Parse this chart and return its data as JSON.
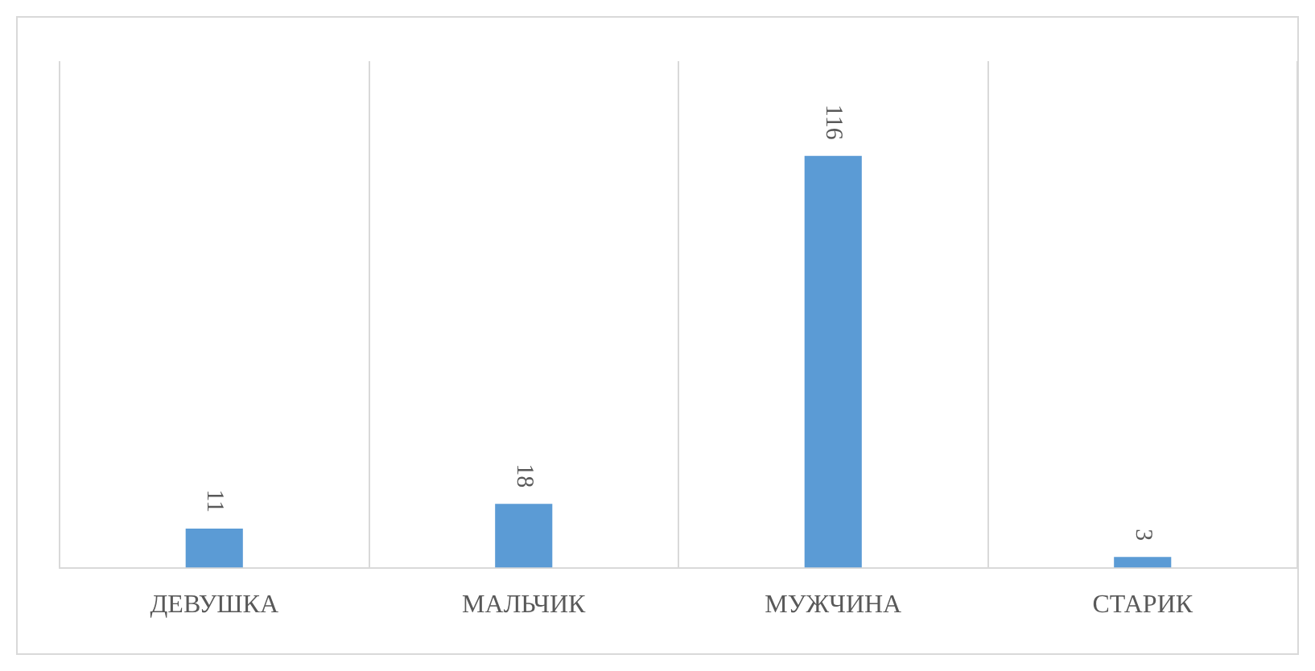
{
  "chart_data": {
    "type": "bar",
    "categories": [
      "ДЕВУШКА",
      "МАЛЬЧИК",
      "МУЖЧИНА",
      "СТАРИК"
    ],
    "values": [
      11,
      18,
      116,
      3
    ],
    "color": "#5b9bd5",
    "data_labels": true,
    "grid": "x"
  }
}
